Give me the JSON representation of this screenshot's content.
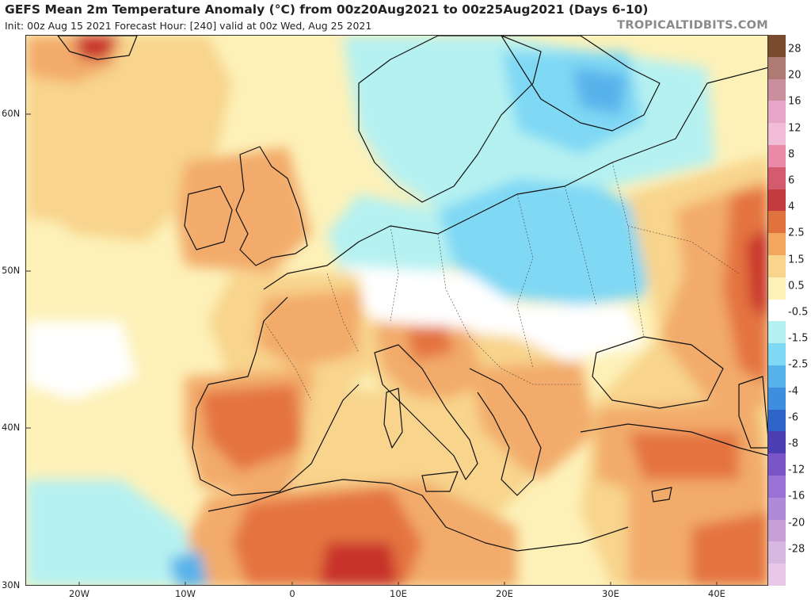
{
  "header": {
    "title": "GEFS Mean 2m Temperature Anomaly (°C) from 00z20Aug2021 to 00z25Aug2021 (Days 6-10)",
    "subtitle": "Init: 00z Aug 15 2021   Forecast Hour: [240]   valid at 00z Wed, Aug 25 2021",
    "brand": "TROPICALTIDBITS.COM"
  },
  "map": {
    "region": "Europe, North Africa and Middle East",
    "lat_labels": [
      {
        "label": "60N",
        "lat": 60
      },
      {
        "label": "50N",
        "lat": 50
      },
      {
        "label": "40N",
        "lat": 40
      },
      {
        "label": "30N",
        "lat": 30
      }
    ],
    "lon_labels": [
      {
        "label": "20W",
        "lon": -20
      },
      {
        "label": "10W",
        "lon": -10
      },
      {
        "label": "0",
        "lon": 0
      },
      {
        "label": "10E",
        "lon": 10
      },
      {
        "label": "20E",
        "lon": 20
      },
      {
        "label": "30E",
        "lon": 30
      },
      {
        "label": "40E",
        "lon": 40
      }
    ],
    "colors": {
      "ocean_neutral": "#fdf1b8",
      "land_neutral": "#ffffff",
      "warm_light": "#f8d48c",
      "warm_mid": "#f2ab6a",
      "warm_strong": "#e4733f",
      "warm_max": "#c8332b",
      "cool_light": "#b6f1f1",
      "cool_mid": "#7fd8f4",
      "cool_strong": "#58b2ea"
    }
  },
  "colorbar": {
    "labels": [
      "28",
      "20",
      "16",
      "12",
      "8",
      "6",
      "4",
      "2.5",
      "1.5",
      "0.5",
      "-0.5",
      "-1.5",
      "-2.5",
      "-4",
      "-6",
      "-8",
      "-12",
      "-16",
      "-20",
      "-28"
    ],
    "swatches": [
      "#7a4a2e",
      "#b07a74",
      "#c98f9e",
      "#e6a5c9",
      "#f0bcd8",
      "#e88aa8",
      "#d45a70",
      "#c33b3f",
      "#e0723d",
      "#f2a65e",
      "#f8d48c",
      "#fdf1b8",
      "#ffffff",
      "#b6f1f1",
      "#7fd8f4",
      "#58b2ea",
      "#3e8ee0",
      "#2e64c8",
      "#4c3fb4",
      "#7a55c8",
      "#9a72d6",
      "#b08ad8",
      "#c7a0d8",
      "#d6b8e0",
      "#e8c8e6"
    ]
  }
}
